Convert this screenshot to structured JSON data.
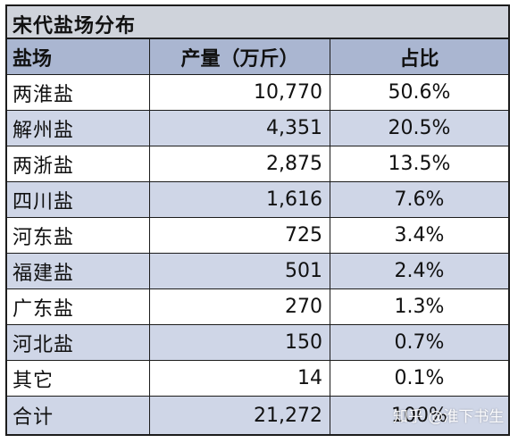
{
  "table": {
    "title": "宋代盐场分布",
    "headers": {
      "salt_field": "盐场",
      "output": "产量（万斤）",
      "share": "占比"
    },
    "rows": [
      {
        "name": "两淮盐",
        "output": "10,770",
        "share": "50.6%"
      },
      {
        "name": "解州盐",
        "output": "4,351",
        "share": "20.5%"
      },
      {
        "name": "两浙盐",
        "output": "2,875",
        "share": "13.5%"
      },
      {
        "name": "四川盐",
        "output": "1,616",
        "share": "7.6%"
      },
      {
        "name": "河东盐",
        "output": "725",
        "share": "3.4%"
      },
      {
        "name": "福建盐",
        "output": "501",
        "share": "2.4%"
      },
      {
        "name": "广东盐",
        "output": "270",
        "share": "1.3%"
      },
      {
        "name": "河北盐",
        "output": "150",
        "share": "0.7%"
      },
      {
        "name": "其它",
        "output": "14",
        "share": "0.1%"
      },
      {
        "name": "合计",
        "output": "21,272",
        "share": "100%"
      }
    ]
  },
  "watermark": "知乎 @淮下书生",
  "colors": {
    "title_bg": "#cfd3db",
    "header_bg": "#aab6d1",
    "odd_row_bg": "#ffffff",
    "even_row_bg": "#cfd6e7",
    "border": "#1c1c1c"
  }
}
